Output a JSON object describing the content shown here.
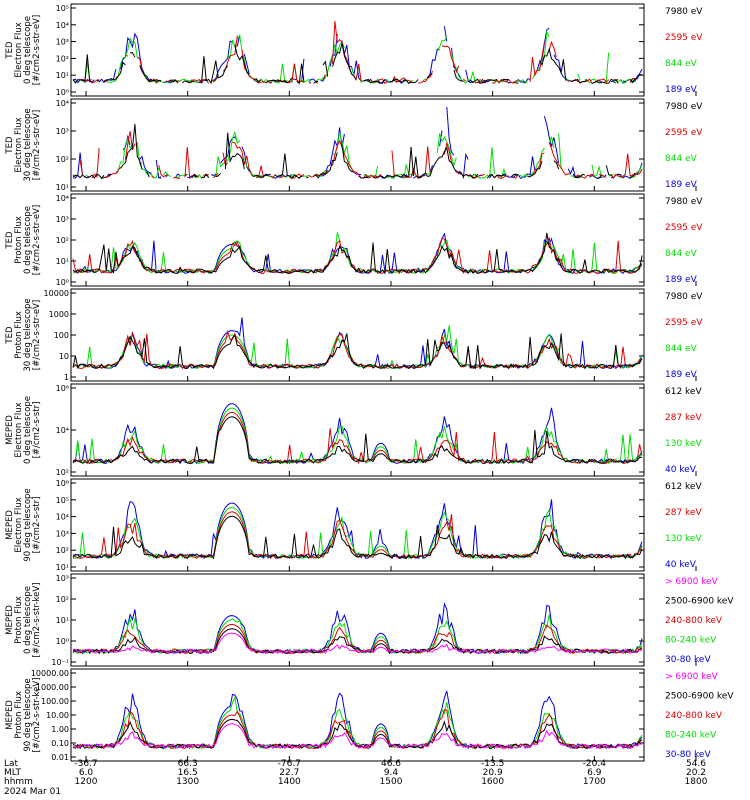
{
  "chart_data": {
    "type": "line",
    "x_hhmm_ticks": [
      "1200",
      "1300",
      "1400",
      "1500",
      "1600",
      "1700",
      "1800"
    ],
    "x_extra_rows": {
      "lat_label": "Lat",
      "lat_values": [
        "-36.7",
        "66.3",
        "-76.7",
        "46.6",
        "-13.5",
        "-20.4",
        "54.6"
      ],
      "mlt_label": "MLT",
      "mlt_values": [
        "6.0",
        "16.5",
        "22.7",
        "9.4",
        "20.9",
        "6.9",
        "20.2"
      ],
      "hhmm_label": "hhmm",
      "date_label": "2024 Mar 01"
    },
    "colors": {
      "black": "#000000",
      "red": "#e00000",
      "green": "#00dd00",
      "blue": "#0000dd",
      "magenta": "#ff00ff"
    },
    "panels": [
      {
        "ylabel_lines": [
          "TED",
          "Electron Flux",
          "0 deg telescope",
          "[#/cm2-s-str-eV]"
        ],
        "log": true,
        "tick_labels": [
          "10⁰",
          "10¹",
          "10²",
          "10³",
          "10⁴",
          "10⁵"
        ],
        "legend": [
          {
            "label": "7980 eV",
            "color": "black"
          },
          {
            "label": "2595 eV",
            "color": "red"
          },
          {
            "label": "844 eV",
            "color": "green"
          },
          {
            "label": "189 eV",
            "color": "blue"
          }
        ]
      },
      {
        "ylabel_lines": [
          "TED",
          "Electron Flux",
          "30 deg telescope",
          "[#/cm2-s-str-eV]"
        ],
        "log": true,
        "tick_labels": [
          "10¹",
          "10²",
          "10³",
          "10⁴"
        ],
        "legend": [
          {
            "label": "7980 eV",
            "color": "black"
          },
          {
            "label": "2595 eV",
            "color": "red"
          },
          {
            "label": "844 eV",
            "color": "green"
          },
          {
            "label": "189 eV",
            "color": "blue"
          }
        ]
      },
      {
        "ylabel_lines": [
          "TED",
          "Proton Flux",
          "0 deg telescope",
          "[#/cm2-s-str-eV]"
        ],
        "log": true,
        "tick_labels": [
          "10⁰",
          "10¹",
          "10²",
          "10³",
          "10⁴"
        ],
        "legend": [
          {
            "label": "7980 eV",
            "color": "black"
          },
          {
            "label": "2595 eV",
            "color": "red"
          },
          {
            "label": "844 eV",
            "color": "green"
          },
          {
            "label": "189 eV",
            "color": "blue"
          }
        ]
      },
      {
        "ylabel_lines": [
          "TED",
          "Proton Flux",
          "30 deg telescope",
          "[#/cm2-s-str-eV]"
        ],
        "log": true,
        "tick_labels": [
          "1",
          "10",
          "100",
          "1000",
          "10000"
        ],
        "legend": [
          {
            "label": "7980 eV",
            "color": "black"
          },
          {
            "label": "2595 eV",
            "color": "red"
          },
          {
            "label": "844 eV",
            "color": "green"
          },
          {
            "label": "189 eV",
            "color": "blue"
          }
        ]
      },
      {
        "ylabel_lines": [
          "MEPED",
          "Electron Flux",
          "0 deg telescope",
          "[#/cm2-s-str]"
        ],
        "log": true,
        "tick_labels": [
          "10²",
          "10⁴",
          "10⁶"
        ],
        "legend": [
          {
            "label": "612 keV",
            "color": "black"
          },
          {
            "label": "287 keV",
            "color": "red"
          },
          {
            "label": "130 keV",
            "color": "green"
          },
          {
            "label": "40 keV",
            "color": "blue"
          }
        ]
      },
      {
        "ylabel_lines": [
          "MEPED",
          "Electron Flux",
          "90 deg telescope",
          "[#/cm2-s-str]"
        ],
        "log": true,
        "tick_labels": [
          "10¹",
          "10²",
          "10³",
          "10⁴",
          "10⁵",
          "10⁶"
        ],
        "legend": [
          {
            "label": "612 keV",
            "color": "black"
          },
          {
            "label": "287 keV",
            "color": "red"
          },
          {
            "label": "130 keV",
            "color": "green"
          },
          {
            "label": "40 keV",
            "color": "blue"
          }
        ]
      },
      {
        "ylabel_lines": [
          "MEPED",
          "Proton Flux",
          "0 deg telescope",
          "[#/cm2-s-str-keV]"
        ],
        "log": true,
        "tick_labels": [
          "10⁻¹",
          "10⁰",
          "10¹",
          "10²",
          "10³"
        ],
        "legend": [
          {
            "label": "> 6900 keV",
            "color": "magenta"
          },
          {
            "label": "2500-6900 keV",
            "color": "black"
          },
          {
            "label": "240-800 keV",
            "color": "red"
          },
          {
            "label": "80-240 keV",
            "color": "green"
          },
          {
            "label": "30-80 keV",
            "color": "blue"
          }
        ]
      },
      {
        "ylabel_lines": [
          "MEPED",
          "Proton Flux",
          "90 deg telescope",
          "[#/cm2-s-str-keV]"
        ],
        "log": true,
        "tick_labels": [
          "0.01",
          "0.10",
          "1.00",
          "10.00",
          "100.00",
          "1000.00",
          "10000.00"
        ],
        "legend": [
          {
            "label": "> 6900 keV",
            "color": "magenta"
          },
          {
            "label": "2500-6900 keV",
            "color": "black"
          },
          {
            "label": "240-800 keV",
            "color": "red"
          },
          {
            "label": "80-240 keV",
            "color": "green"
          },
          {
            "label": "30-80 keV",
            "color": "blue"
          }
        ]
      }
    ]
  }
}
